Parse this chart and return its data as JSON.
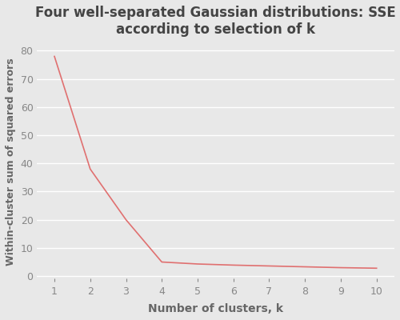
{
  "x": [
    1,
    2,
    3,
    4,
    5,
    6,
    7,
    8,
    9,
    10
  ],
  "y": [
    78.0,
    38.0,
    20.0,
    5.0,
    4.3,
    3.9,
    3.6,
    3.3,
    3.0,
    2.8
  ],
  "line_color": "#e07070",
  "line_width": 1.2,
  "title": "Four well-separated Gaussian distributions: SSE\naccording to selection of k",
  "xlabel": "Number of clusters, k",
  "ylabel": "Within-cluster sum of squared errors",
  "xlim": [
    0.5,
    10.5
  ],
  "ylim": [
    -2,
    83
  ],
  "yticks": [
    0,
    10,
    20,
    30,
    40,
    50,
    60,
    70,
    80
  ],
  "xticks": [
    1,
    2,
    3,
    4,
    5,
    6,
    7,
    8,
    9,
    10
  ],
  "bg_color": "#e8e8e8",
  "plot_bg_color": "#e8e8e8",
  "grid_color": "#ffffff",
  "title_color": "#444444",
  "label_color": "#666666",
  "tick_color": "#888888",
  "title_fontsize": 12,
  "label_fontsize": 10,
  "tick_fontsize": 9
}
